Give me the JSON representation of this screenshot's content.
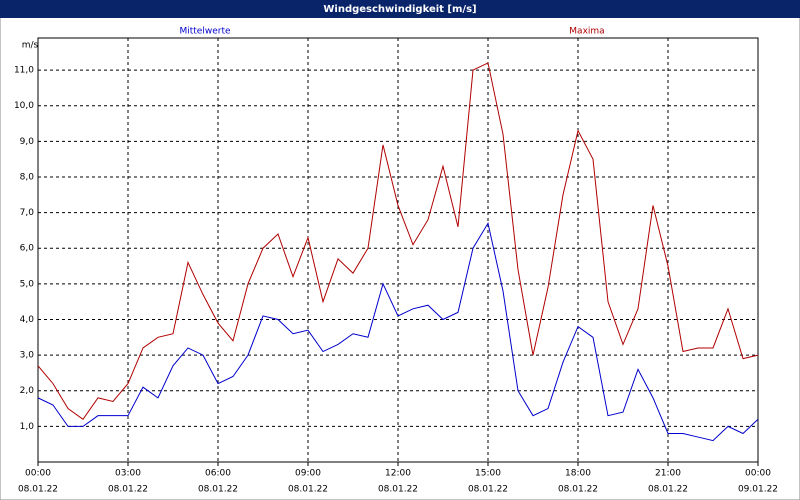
{
  "window_title": "Windgeschwindigkeit [m/s]",
  "chart_data": {
    "type": "line",
    "ylabel": "m/s",
    "x": [
      0,
      0.5,
      1,
      1.5,
      2,
      2.5,
      3,
      3.5,
      4,
      4.5,
      5,
      5.5,
      6,
      6.5,
      7,
      7.5,
      8,
      8.5,
      9,
      9.5,
      10,
      10.5,
      11,
      11.5,
      12,
      12.5,
      13,
      13.5,
      14,
      14.5,
      15,
      15.5,
      16,
      16.5,
      17,
      17.5,
      18,
      18.5,
      19,
      19.5,
      20,
      20.5,
      21,
      21.5,
      22,
      22.5,
      23,
      23.5,
      24
    ],
    "series": [
      {
        "name": "Mittelwerte",
        "color": "#0000cc",
        "values": [
          1.8,
          1.6,
          1.0,
          1.0,
          1.3,
          1.3,
          1.3,
          2.1,
          1.8,
          2.7,
          3.2,
          3.0,
          2.2,
          2.4,
          3.0,
          4.1,
          4.0,
          3.6,
          3.7,
          3.1,
          3.3,
          3.6,
          3.5,
          5.0,
          4.1,
          4.3,
          4.4,
          4.0,
          4.2,
          6.0,
          6.7,
          4.8,
          2.0,
          1.3,
          1.5,
          2.8,
          3.8,
          3.5,
          1.3,
          1.4,
          2.6,
          1.8,
          0.8,
          0.8,
          0.7,
          0.6,
          1.0,
          0.8,
          1.2
        ]
      },
      {
        "name": "Maxima",
        "color": "#b00000",
        "values": [
          2.7,
          2.2,
          1.5,
          1.2,
          1.8,
          1.7,
          2.2,
          3.2,
          3.5,
          3.6,
          5.6,
          4.7,
          3.9,
          3.4,
          5.0,
          6.0,
          6.4,
          5.2,
          6.3,
          4.5,
          5.7,
          5.3,
          6.0,
          8.9,
          7.2,
          6.1,
          6.8,
          8.3,
          6.6,
          11.0,
          11.2,
          9.2,
          5.4,
          3.0,
          4.9,
          7.5,
          9.3,
          8.5,
          4.5,
          3.3,
          4.3,
          7.2,
          5.5,
          3.1,
          3.2,
          3.2,
          4.3,
          2.9,
          3.0
        ]
      }
    ],
    "xlim": [
      0,
      24
    ],
    "xticks": [
      {
        "value": 0,
        "label": "00:00"
      },
      {
        "value": 3,
        "label": "03:00"
      },
      {
        "value": 6,
        "label": "06:00"
      },
      {
        "value": 9,
        "label": "09:00"
      },
      {
        "value": 12,
        "label": "12:00"
      },
      {
        "value": 15,
        "label": "15:00"
      },
      {
        "value": 18,
        "label": "18:00"
      },
      {
        "value": 21,
        "label": "21:00"
      },
      {
        "value": 24,
        "label": "00:00"
      }
    ],
    "xtick_dates": [
      "08.01.22",
      "08.01.22",
      "08.01.22",
      "08.01.22",
      "08.01.22",
      "08.01.22",
      "08.01.22",
      "08.01.22",
      "09.01.22"
    ],
    "ylim": [
      0,
      11.9
    ],
    "yticks": [
      {
        "value": 1,
        "label": "1,0"
      },
      {
        "value": 2,
        "label": "2,0"
      },
      {
        "value": 3,
        "label": "3,0"
      },
      {
        "value": 4,
        "label": "4,0"
      },
      {
        "value": 5,
        "label": "5,0"
      },
      {
        "value": 6,
        "label": "6,0"
      },
      {
        "value": 7,
        "label": "7,0"
      },
      {
        "value": 8,
        "label": "8,0"
      },
      {
        "value": 9,
        "label": "9,0"
      },
      {
        "value": 10,
        "label": "10,0"
      },
      {
        "value": 11,
        "label": "11,0"
      }
    ],
    "grid": true
  }
}
